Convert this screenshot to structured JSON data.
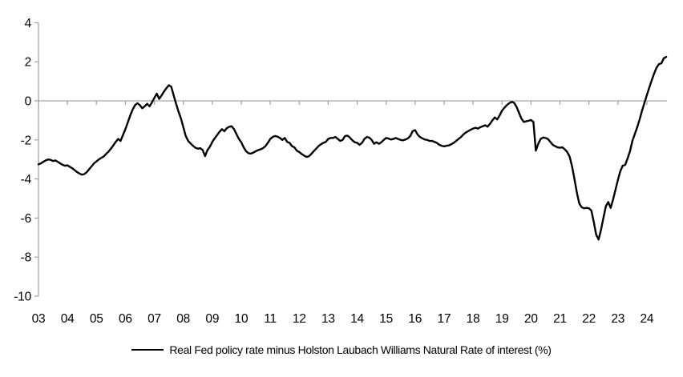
{
  "chart_data": {
    "type": "line",
    "title": "",
    "legend": "Real Fed policy rate minus Holston Laubach Williams Natural Rate of interest (%)",
    "x_start_year": 2003,
    "frequency": "monthly",
    "xlabel": "",
    "ylabel": "",
    "ylim": [
      -10,
      4
    ],
    "grid": false,
    "zero_line": true,
    "legend_position": "bottom-center",
    "x_labels": [
      "03",
      "04",
      "05",
      "06",
      "07",
      "08",
      "09",
      "10",
      "11",
      "12",
      "13",
      "14",
      "15",
      "16",
      "17",
      "18",
      "19",
      "20",
      "21",
      "22",
      "23",
      "24"
    ],
    "y_ticks": [
      4,
      2,
      0,
      -2,
      -4,
      -6,
      -8,
      -10
    ],
    "colors": {
      "line": "#000000",
      "axis": "#a6a6a6",
      "text": "#000000"
    },
    "series": [
      {
        "name": "Real Fed policy rate minus Holston Laubach Williams Natural Rate of interest (%)",
        "values": [
          -3.25,
          -3.2,
          -3.12,
          -3.05,
          -3.0,
          -3.02,
          -3.08,
          -3.05,
          -3.12,
          -3.2,
          -3.28,
          -3.32,
          -3.3,
          -3.38,
          -3.45,
          -3.55,
          -3.65,
          -3.72,
          -3.78,
          -3.75,
          -3.65,
          -3.5,
          -3.35,
          -3.2,
          -3.1,
          -3.0,
          -2.92,
          -2.85,
          -2.72,
          -2.6,
          -2.45,
          -2.28,
          -2.1,
          -1.95,
          -2.05,
          -1.75,
          -1.45,
          -1.1,
          -0.75,
          -0.45,
          -0.22,
          -0.12,
          -0.22,
          -0.38,
          -0.28,
          -0.15,
          -0.28,
          -0.08,
          0.15,
          0.37,
          0.1,
          0.28,
          0.48,
          0.65,
          0.8,
          0.72,
          0.28,
          -0.15,
          -0.55,
          -0.9,
          -1.35,
          -1.8,
          -2.05,
          -2.18,
          -2.3,
          -2.4,
          -2.45,
          -2.42,
          -2.52,
          -2.83,
          -2.52,
          -2.35,
          -2.1,
          -1.92,
          -1.75,
          -1.58,
          -1.45,
          -1.55,
          -1.4,
          -1.33,
          -1.3,
          -1.45,
          -1.7,
          -1.95,
          -2.12,
          -2.38,
          -2.58,
          -2.68,
          -2.7,
          -2.65,
          -2.58,
          -2.52,
          -2.48,
          -2.42,
          -2.32,
          -2.15,
          -1.95,
          -1.85,
          -1.8,
          -1.83,
          -1.9,
          -2.0,
          -1.9,
          -2.1,
          -2.15,
          -2.32,
          -2.38,
          -2.55,
          -2.62,
          -2.72,
          -2.8,
          -2.87,
          -2.84,
          -2.72,
          -2.58,
          -2.45,
          -2.32,
          -2.22,
          -2.15,
          -2.1,
          -1.95,
          -1.9,
          -1.9,
          -1.85,
          -1.95,
          -2.05,
          -2.0,
          -1.8,
          -1.78,
          -1.88,
          -2.02,
          -2.12,
          -2.15,
          -2.25,
          -2.15,
          -1.95,
          -1.85,
          -1.88,
          -2.0,
          -2.2,
          -2.12,
          -2.2,
          -2.12,
          -2.0,
          -1.9,
          -1.93,
          -1.98,
          -1.95,
          -1.9,
          -1.95,
          -2.0,
          -2.02,
          -1.98,
          -1.92,
          -1.8,
          -1.55,
          -1.5,
          -1.72,
          -1.85,
          -1.92,
          -1.98,
          -2.0,
          -2.05,
          -2.05,
          -2.1,
          -2.15,
          -2.25,
          -2.3,
          -2.33,
          -2.3,
          -2.28,
          -2.22,
          -2.15,
          -2.05,
          -1.95,
          -1.85,
          -1.72,
          -1.62,
          -1.55,
          -1.48,
          -1.42,
          -1.38,
          -1.42,
          -1.35,
          -1.3,
          -1.25,
          -1.32,
          -1.18,
          -1.0,
          -0.85,
          -0.95,
          -0.75,
          -0.5,
          -0.35,
          -0.22,
          -0.12,
          -0.05,
          -0.1,
          -0.3,
          -0.6,
          -0.9,
          -1.08,
          -1.05,
          -1.02,
          -0.98,
          -1.08,
          -2.55,
          -2.2,
          -1.95,
          -1.88,
          -1.9,
          -1.95,
          -2.1,
          -2.25,
          -2.32,
          -2.38,
          -2.4,
          -2.38,
          -2.48,
          -2.62,
          -2.85,
          -3.35,
          -4.0,
          -4.7,
          -5.25,
          -5.45,
          -5.5,
          -5.48,
          -5.5,
          -5.62,
          -6.2,
          -6.85,
          -7.1,
          -6.6,
          -6.0,
          -5.4,
          -5.18,
          -5.48,
          -5.05,
          -4.55,
          -4.05,
          -3.6,
          -3.32,
          -3.28,
          -2.95,
          -2.58,
          -2.05,
          -1.7,
          -1.35,
          -0.95,
          -0.5,
          -0.1,
          0.3,
          0.68,
          1.05,
          1.4,
          1.7,
          1.88,
          1.92,
          2.18,
          2.25
        ]
      }
    ]
  }
}
